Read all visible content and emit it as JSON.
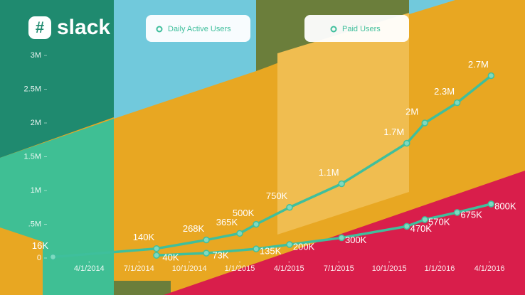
{
  "logo": "slack",
  "chart_data": {
    "type": "line",
    "series": [
      {
        "name": "Daily Active Users",
        "color": "#3fbf9c",
        "x": [
          "2014-01-25",
          "2014-08-02",
          "2014-11-01",
          "2015-01-01",
          "2015-01-31",
          "2015-04-02",
          "2015-07-06",
          "2015-11-02",
          "2015-12-05",
          "2016-02-02",
          "2016-04-04"
        ],
        "values": [
          16000,
          140000,
          268000,
          365000,
          500000,
          750000,
          1100000,
          1700000,
          2000000,
          2300000,
          2700000
        ],
        "value_labels": [
          "16K",
          "140K",
          "268K",
          "365K",
          "500K",
          "750K",
          "1.1M",
          "1.7M",
          "2M",
          "2.3M",
          "2.7M"
        ]
      },
      {
        "name": "Paid Users",
        "color": "#3fbf9c",
        "x": [
          "2014-08-02",
          "2014-11-01",
          "2015-01-31",
          "2015-04-02",
          "2015-07-06",
          "2015-11-02",
          "2015-12-05",
          "2016-02-02",
          "2016-04-04"
        ],
        "values": [
          40000,
          73000,
          135000,
          200000,
          300000,
          470000,
          570000,
          675000,
          800000
        ],
        "value_labels": [
          "40K",
          "73K",
          "135K",
          "200K",
          "300K",
          "470K",
          "570K",
          "675K",
          "800K"
        ]
      }
    ],
    "xlim": [
      "2014-01-01",
      "2016-06-01"
    ],
    "xticks": [
      {
        "value": "2014-04-01",
        "label": "4/1/2014"
      },
      {
        "value": "2014-07-01",
        "label": "7/1/2014"
      },
      {
        "value": "2014-10-01",
        "label": "10/1/2014"
      },
      {
        "value": "2015-01-01",
        "label": "1/1/2015"
      },
      {
        "value": "2015-04-01",
        "label": "4/1/2015"
      },
      {
        "value": "2015-07-01",
        "label": "7/1/2015"
      },
      {
        "value": "2015-10-01",
        "label": "10/1/2015"
      },
      {
        "value": "2016-01-01",
        "label": "1/1/2016"
      },
      {
        "value": "2016-04-01",
        "label": "4/1/2016"
      }
    ],
    "ylim": [
      0,
      3000000
    ],
    "yticks": [
      0,
      {
        "value": 500000,
        "label": ".5M"
      },
      {
        "value": 1000000,
        "label": "1M"
      },
      {
        "value": 1500000,
        "label": "1.5M"
      },
      {
        "value": 2000000,
        "label": "2M"
      },
      {
        "value": 2500000,
        "label": "2.5M"
      },
      {
        "value": 3000000,
        "label": "3M"
      }
    ]
  }
}
